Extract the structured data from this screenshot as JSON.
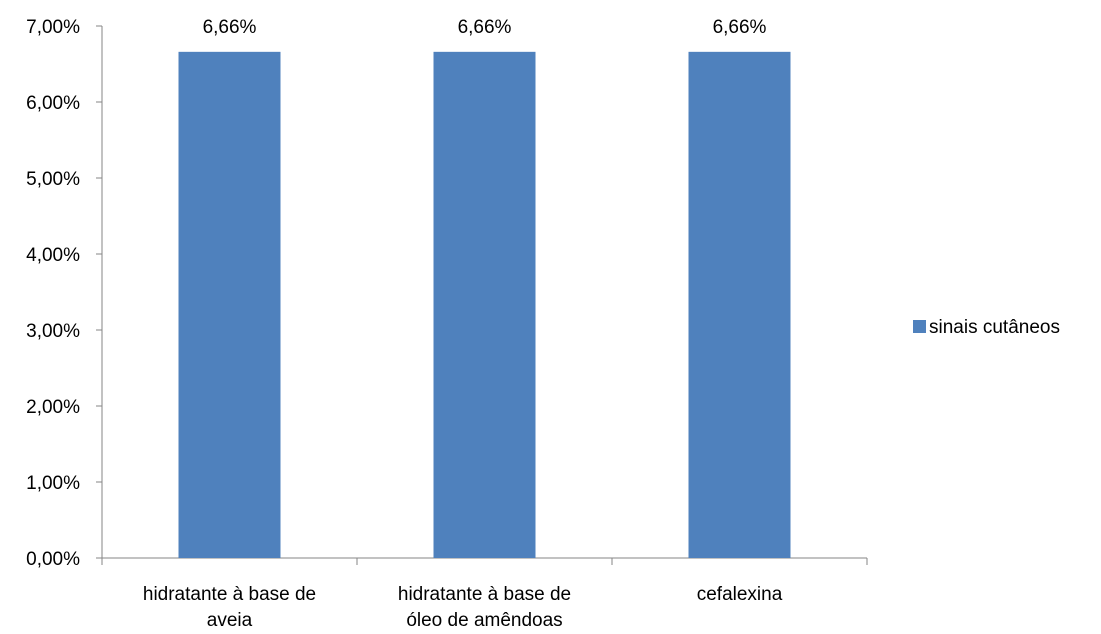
{
  "chart_data": {
    "type": "bar",
    "categories": [
      [
        "hidratante à base de",
        "aveia"
      ],
      [
        "hidratante à base de",
        "óleo de amêndoas"
      ],
      [
        "cefalexina"
      ]
    ],
    "series": [
      {
        "name": "sinais cutâneos",
        "values": [
          6.66,
          6.66,
          6.66
        ],
        "color": "#4F81BD"
      }
    ],
    "data_labels": [
      "6,66%",
      "6,66%",
      "6,66%"
    ],
    "y_ticks": [
      "0,00%",
      "1,00%",
      "2,00%",
      "3,00%",
      "4,00%",
      "5,00%",
      "6,00%",
      "7,00%"
    ],
    "ylim": [
      0,
      7
    ],
    "y_tick_step": 1,
    "grid": false,
    "legend_position": "right",
    "axis_color": "#868686"
  }
}
